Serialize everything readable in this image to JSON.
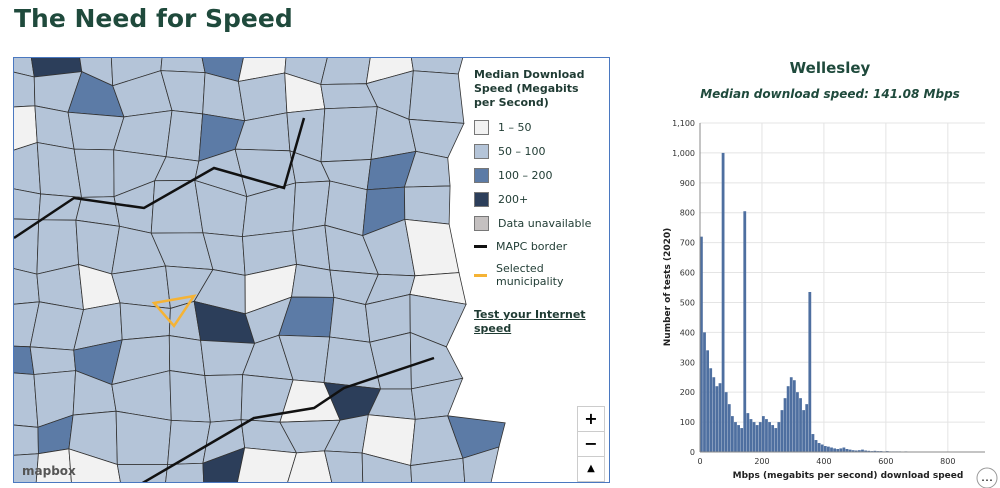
{
  "header": {
    "title": "The Need for Speed"
  },
  "map": {
    "legend": {
      "title": "Median Download Speed (Megabits per Second)",
      "items": [
        {
          "label": "1 – 50",
          "color": "#f2f2f2",
          "kind": "fill"
        },
        {
          "label": "50 – 100",
          "color": "#b4c4d8",
          "kind": "fill"
        },
        {
          "label": "100 – 200",
          "color": "#5c7ba6",
          "kind": "fill"
        },
        {
          "label": "200+",
          "color": "#2c3e5a",
          "kind": "fill"
        },
        {
          "label": "Data unavailable",
          "color": "#c4c0c0",
          "kind": "fill"
        },
        {
          "label": "MAPC border",
          "color": "#111111",
          "kind": "line"
        },
        {
          "label": "Selected municipality",
          "color": "#f5b335",
          "kind": "line"
        }
      ]
    },
    "link": "Test your Internet speed",
    "controls": [
      "+",
      "−"
    ],
    "attribution": "mapbox"
  },
  "chart_data": {
    "type": "histogram",
    "title": "Wellesley",
    "subtitle": "Median download speed: 141.08 Mbps",
    "x_label": "Mbps (megabits per second) download speed",
    "y_label": "Number of tests (2020)",
    "color": "#4e6fa0",
    "bins": [
      0,
      10,
      20,
      30,
      40,
      50,
      60,
      70,
      80,
      90,
      100,
      110,
      120,
      130,
      140,
      150,
      160,
      170,
      180,
      190,
      200,
      210,
      220,
      230,
      240,
      250,
      260,
      270,
      280,
      290,
      300,
      310,
      320,
      330,
      340,
      350,
      360,
      370,
      380,
      390,
      400,
      410,
      420,
      430,
      440,
      450,
      460,
      470,
      480,
      490,
      500,
      510,
      520,
      530,
      540,
      550,
      560,
      570,
      580,
      590,
      600,
      610,
      620,
      630,
      640,
      650,
      660,
      670,
      680,
      690,
      700,
      710,
      720,
      730,
      740,
      750,
      760,
      770,
      780,
      790,
      800,
      810,
      820,
      830,
      840,
      850,
      860,
      870,
      880,
      890,
      900
    ],
    "counts": [
      720,
      400,
      340,
      280,
      250,
      220,
      230,
      1000,
      200,
      160,
      120,
      100,
      90,
      80,
      805,
      130,
      110,
      100,
      90,
      100,
      120,
      110,
      100,
      90,
      80,
      100,
      140,
      180,
      220,
      250,
      240,
      200,
      180,
      140,
      160,
      535,
      60,
      40,
      30,
      25,
      20,
      18,
      15,
      12,
      10,
      12,
      15,
      10,
      8,
      6,
      5,
      6,
      8,
      5,
      4,
      3,
      4,
      3,
      3,
      2,
      3,
      2,
      2,
      2,
      2,
      1,
      2,
      1,
      1,
      1,
      1,
      1,
      1,
      1,
      1,
      1,
      1,
      1,
      1,
      1,
      1,
      1,
      1,
      1,
      1,
      1,
      1,
      1,
      1,
      1
    ],
    "xlim": [
      0,
      920
    ],
    "xticks": [
      0,
      200,
      400,
      600,
      800
    ],
    "ylim": [
      0,
      1100
    ],
    "yticks": [
      0,
      100,
      200,
      300,
      400,
      500,
      600,
      700,
      800,
      900,
      {
        "value": 1000,
        "label": "1,000"
      },
      {
        "value": 1100,
        "label": "1,100"
      }
    ],
    "grid": true
  }
}
